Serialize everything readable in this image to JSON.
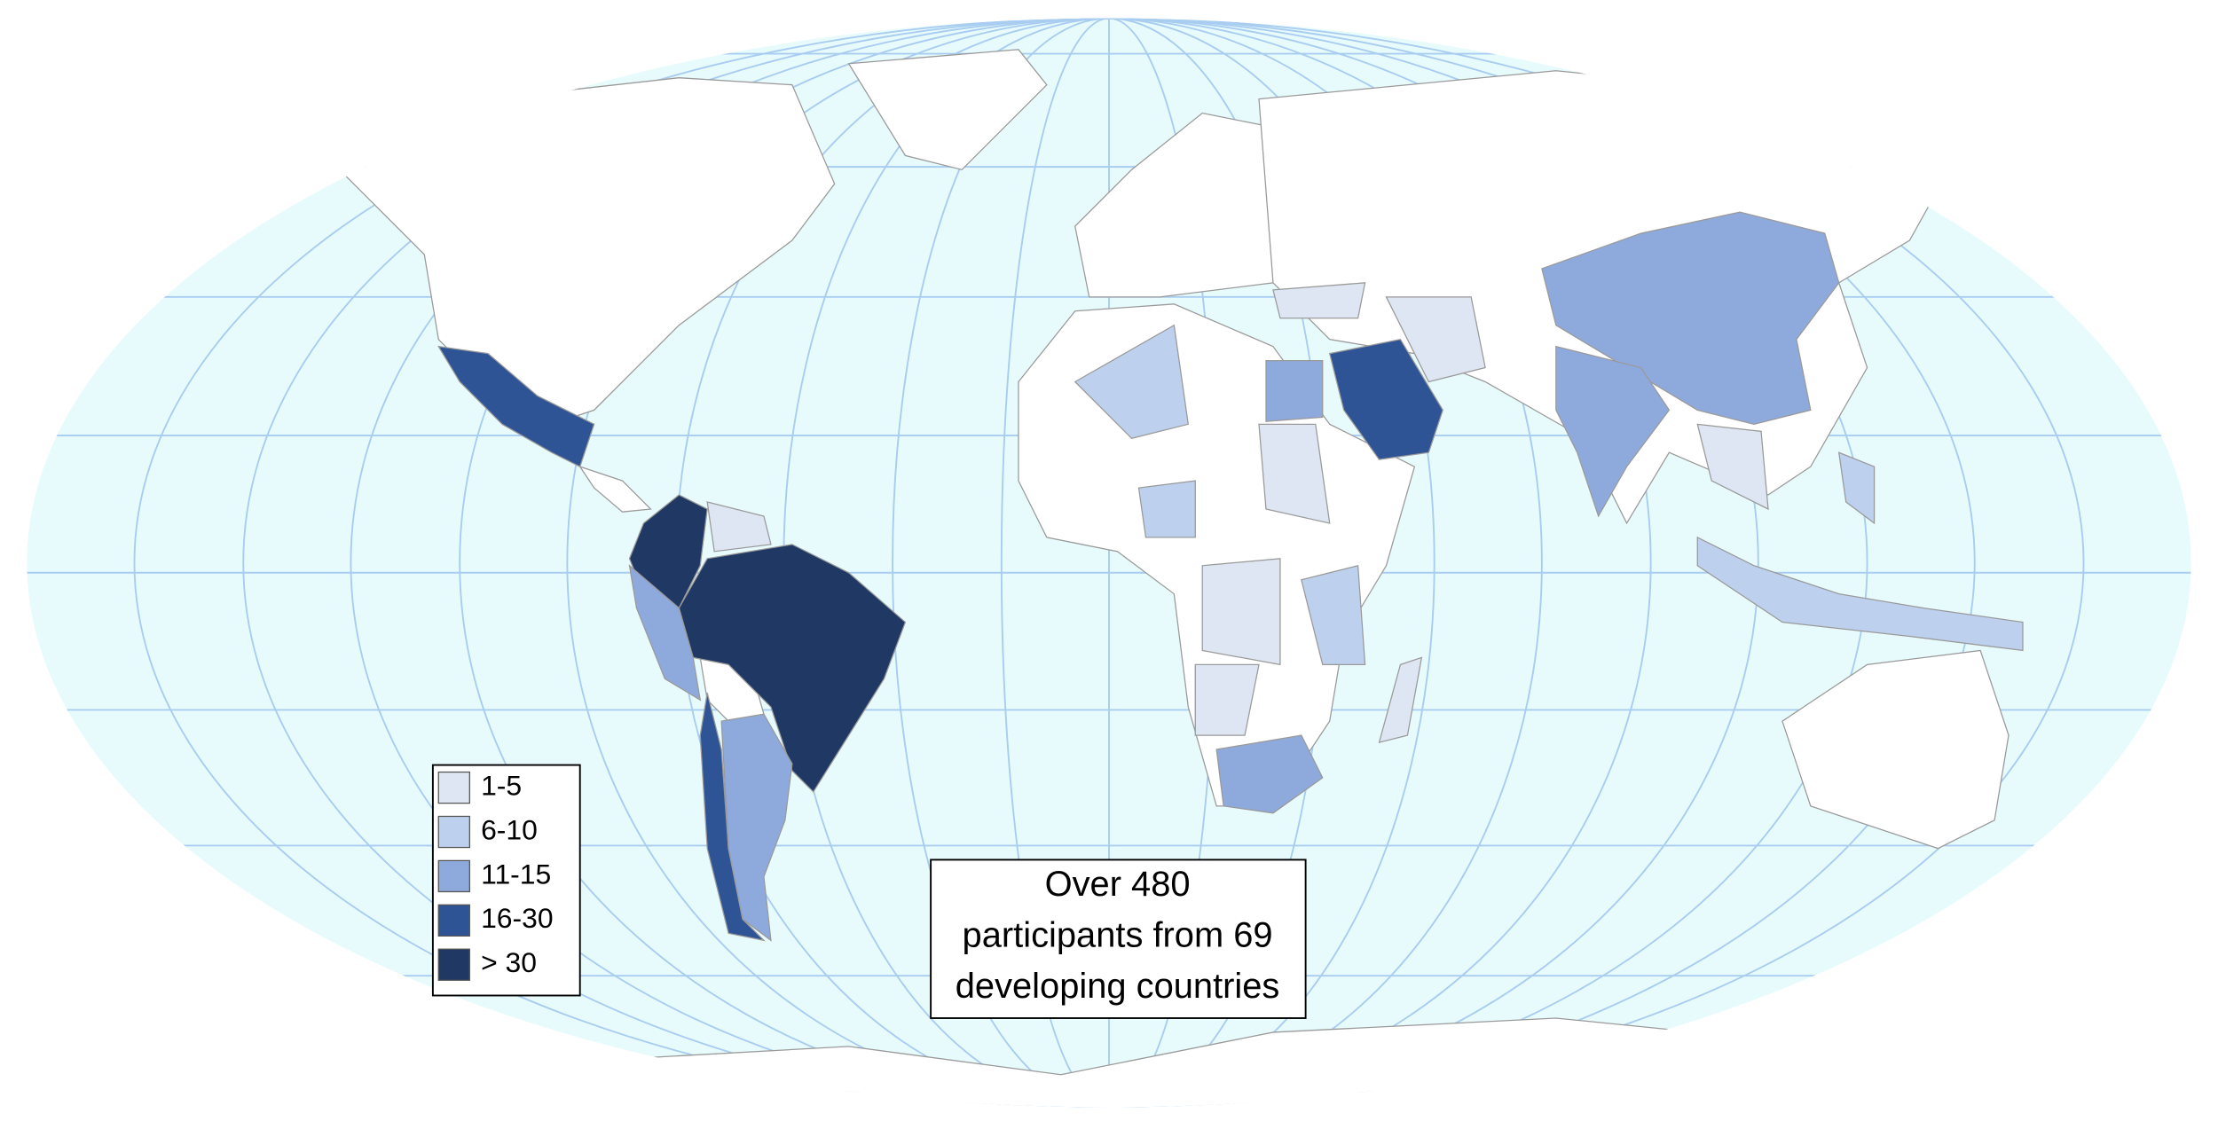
{
  "legend": {
    "items": [
      {
        "label": "1-5",
        "color": "#dde6f2"
      },
      {
        "label": "6-10",
        "color": "#bdd1ee"
      },
      {
        "label": "11-15",
        "color": "#8ea9dc"
      },
      {
        "label": "16-30",
        "color": "#2f5496"
      },
      {
        "label": "> 30",
        "color": "#1f3864"
      }
    ]
  },
  "annotation": {
    "lines": [
      "Over 480",
      "participants from 69",
      "developing countries"
    ]
  }
}
